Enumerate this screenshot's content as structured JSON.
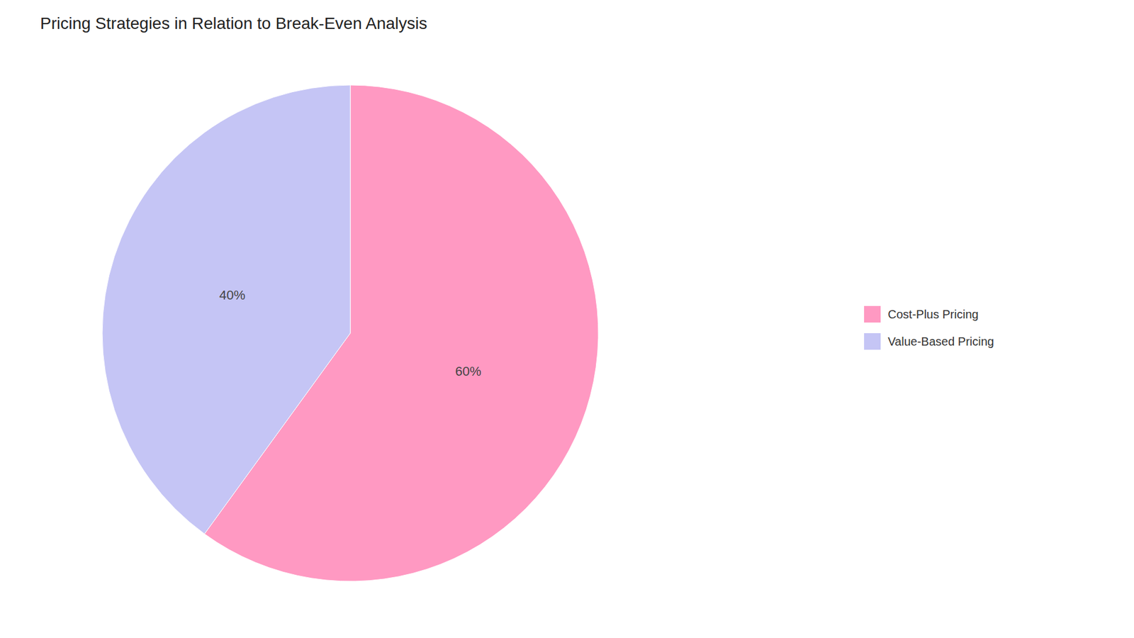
{
  "chart_data": {
    "type": "pie",
    "title": "Pricing Strategies in Relation to Break-Even Analysis",
    "categories": [
      "Cost-Plus Pricing",
      "Value-Based Pricing"
    ],
    "values": [
      60,
      40
    ],
    "value_labels": [
      "60%",
      "40%"
    ],
    "colors": [
      "#FF99C2",
      "#C5C5F5"
    ],
    "data_labels": true,
    "legend": "right"
  }
}
